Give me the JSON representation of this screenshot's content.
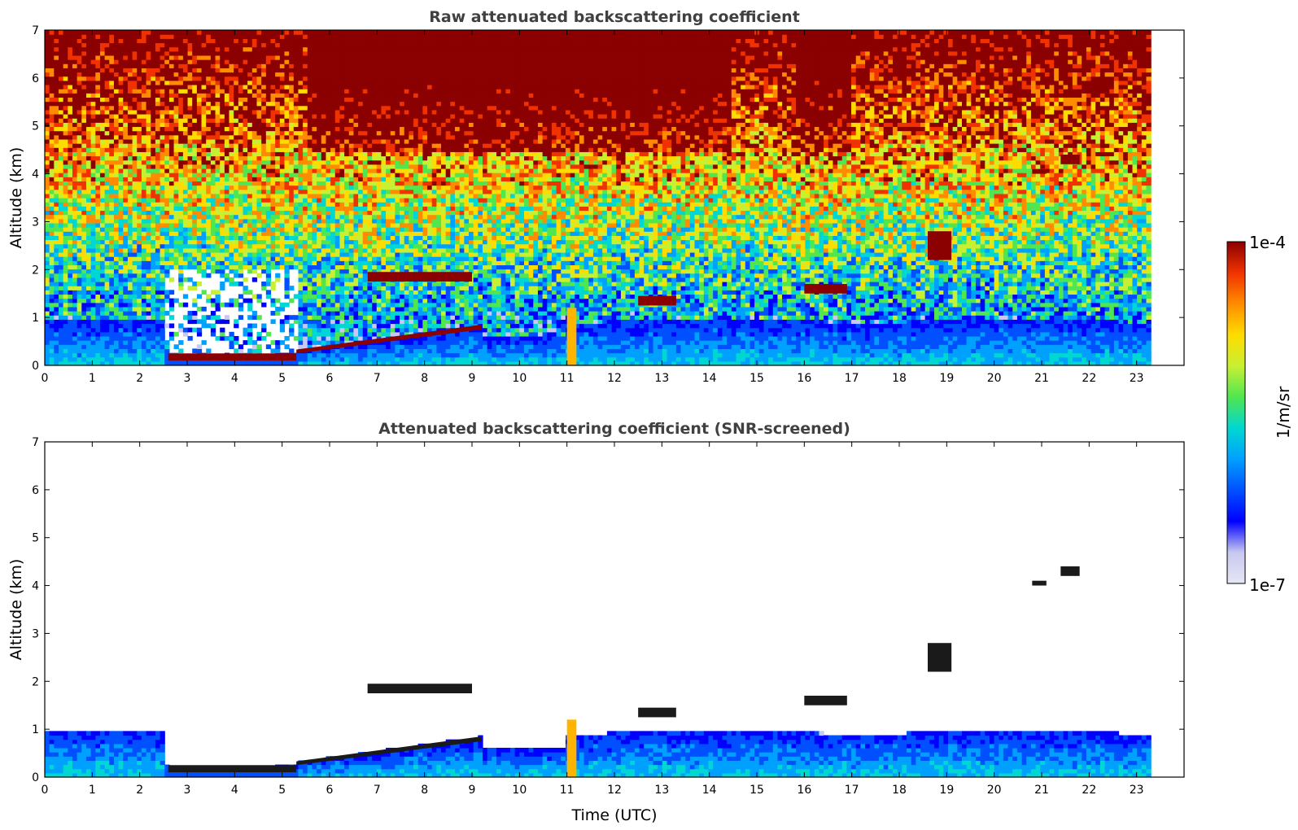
{
  "colors": {
    "colormap": [
      "#e6e6f5",
      "#c8c8f0",
      "#0000ff",
      "#0050ff",
      "#00a0ff",
      "#00d7d2",
      "#50e650",
      "#c8f032",
      "#ffdc00",
      "#ff8c00",
      "#f03200",
      "#8b0000"
    ],
    "text": "#404040"
  },
  "colorbar": {
    "label": "1/m/sr",
    "max_label": "1e-4",
    "min_label": "1e-7",
    "scale": "log"
  },
  "chart_data": [
    {
      "type": "heatmap",
      "title": "Raw attenuated backscattering coefficient",
      "ylabel": "Altitude (km)",
      "xlabel": "",
      "xlim": [
        0,
        24
      ],
      "ylim": [
        0,
        7
      ],
      "xticks": [
        "0",
        "1",
        "2",
        "3",
        "4",
        "5",
        "6",
        "7",
        "8",
        "9",
        "10",
        "11",
        "12",
        "13",
        "14",
        "15",
        "16",
        "17",
        "18",
        "19",
        "20",
        "21",
        "22",
        "23"
      ],
      "yticks": [
        "0",
        "1",
        "2",
        "3",
        "4",
        "5",
        "6",
        "7"
      ],
      "data_end_time": 23.3,
      "layers": [
        {
          "name": "boundary layer aerosol",
          "x": [
            0,
            2.5
          ],
          "y": [
            0,
            1.0
          ]
        },
        {
          "name": "low cloud",
          "x": [
            2.6,
            5.3
          ],
          "y": [
            0.1,
            0.25
          ]
        },
        {
          "name": "rising cloud layer",
          "x": [
            5.3,
            9.2
          ],
          "y": [
            0.25,
            0.85
          ]
        },
        {
          "name": "cloud layer",
          "x": [
            6.8,
            9.0
          ],
          "y": [
            1.75,
            1.95
          ]
        },
        {
          "name": "precipitation shaft",
          "x": [
            11.0,
            11.2
          ],
          "y": [
            0,
            1.2
          ]
        },
        {
          "name": "cloud layer",
          "x": [
            12.5,
            13.3
          ],
          "y": [
            1.25,
            1.45
          ]
        },
        {
          "name": "cloud layer",
          "x": [
            16.0,
            16.9
          ],
          "y": [
            1.5,
            1.7
          ]
        },
        {
          "name": "cloud layer",
          "x": [
            18.6,
            19.1
          ],
          "y": [
            2.2,
            2.8
          ]
        },
        {
          "name": "cloud",
          "x": [
            20.8,
            21.1
          ],
          "y": [
            4.0,
            4.1
          ]
        },
        {
          "name": "cloud",
          "x": [
            21.4,
            21.8
          ],
          "y": [
            4.2,
            4.4
          ]
        }
      ]
    },
    {
      "type": "heatmap",
      "title": "Attenuated backscattering coefficient (SNR-screened)",
      "ylabel": "Altitude (km)",
      "xlabel": "Time (UTC)",
      "xlim": [
        0,
        24
      ],
      "ylim": [
        0,
        7
      ],
      "xticks": [
        "0",
        "1",
        "2",
        "3",
        "4",
        "5",
        "6",
        "7",
        "8",
        "9",
        "10",
        "11",
        "12",
        "13",
        "14",
        "15",
        "16",
        "17",
        "18",
        "19",
        "20",
        "21",
        "22",
        "23"
      ],
      "yticks": [
        "0",
        "1",
        "2",
        "3",
        "4",
        "5",
        "6",
        "7"
      ],
      "data_end_time": 23.3
    }
  ]
}
